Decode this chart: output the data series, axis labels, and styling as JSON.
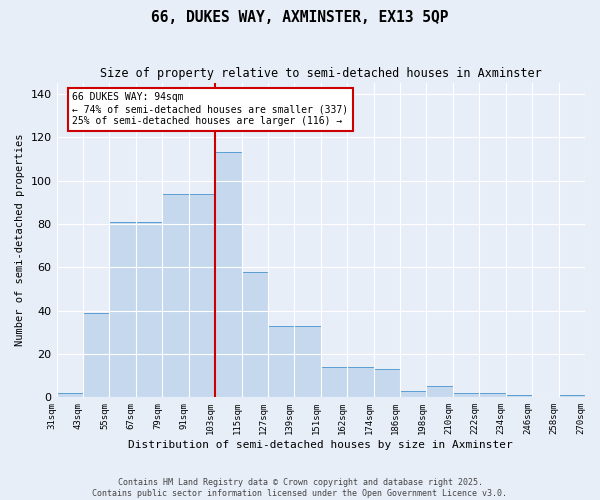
{
  "title": "66, DUKES WAY, AXMINSTER, EX13 5QP",
  "subtitle": "Size of property relative to semi-detached houses in Axminster",
  "xlabel": "Distribution of semi-detached houses by size in Axminster",
  "ylabel": "Number of semi-detached properties",
  "bar_values": [
    2,
    39,
    81,
    81,
    94,
    94,
    113,
    58,
    33,
    33,
    14,
    14,
    13,
    3,
    5,
    2,
    2,
    1,
    0,
    1
  ],
  "bin_labels": [
    "31sqm",
    "43sqm",
    "55sqm",
    "67sqm",
    "79sqm",
    "91sqm",
    "103sqm",
    "115sqm",
    "127sqm",
    "139sqm",
    "151sqm",
    "162sqm",
    "174sqm",
    "186sqm",
    "198sqm",
    "210sqm",
    "222sqm",
    "234sqm",
    "246sqm",
    "258sqm",
    "270sqm"
  ],
  "bar_color": "#c5d8ee",
  "bar_edge_color": "#5a9fd4",
  "background_color": "#e8eef8",
  "grid_color": "#ffffff",
  "vline_color": "#cc0000",
  "annotation_text_line1": "66 DUKES WAY: 94sqm",
  "annotation_text_line2": "← 74% of semi-detached houses are smaller (337)",
  "annotation_text_line3": "25% of semi-detached houses are larger (116) →",
  "annotation_box_color": "#ffffff",
  "annotation_border_color": "#cc0000",
  "ylim": [
    0,
    145
  ],
  "yticks": [
    0,
    20,
    40,
    60,
    80,
    100,
    120,
    140
  ],
  "footer_line1": "Contains HM Land Registry data © Crown copyright and database right 2025.",
  "footer_line2": "Contains public sector information licensed under the Open Government Licence v3.0."
}
